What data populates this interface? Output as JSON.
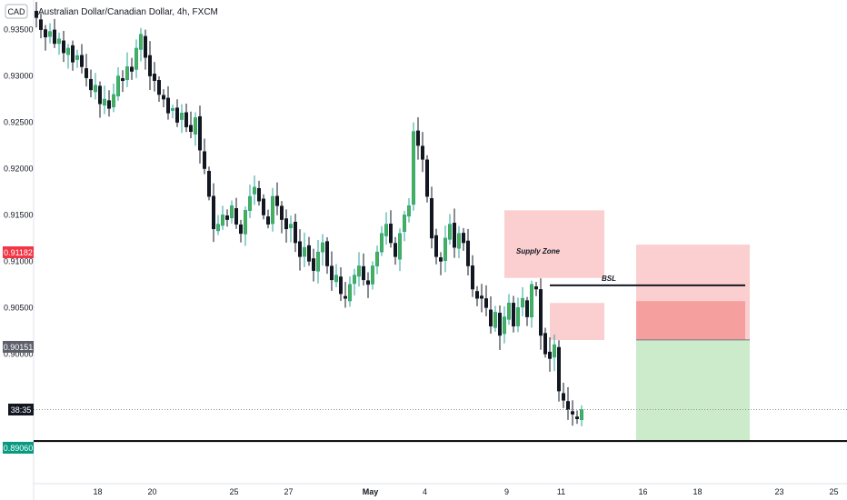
{
  "header": {
    "currency_badge": "CAD",
    "title": "Australian Dollar/Canadian Dollar, 4h, FXCM"
  },
  "colors": {
    "bull": "#26a69a",
    "bull_fill": "#4caf50",
    "bear": "#131722",
    "supply": "#f7a8a8",
    "stop": "#f48a8a",
    "target": "#b9e4b9",
    "red_tag": "#f23645",
    "gray_tag": "#5d606b",
    "green_tag": "#089981",
    "dark_tag": "#131722"
  },
  "price_tags": {
    "red": "0.91182",
    "gray": "0.90151",
    "countdown": "38:35",
    "green": "0.89060"
  },
  "chart_data": {
    "type": "candlestick",
    "title": "Australian Dollar/Canadian Dollar, 4h, FXCM",
    "ylim": [
      0.886,
      0.9382
    ],
    "y_ticks": [
      "0.93500",
      "0.93000",
      "0.92500",
      "0.92000",
      "0.91500",
      "0.91000",
      "0.90500",
      "0.90000"
    ],
    "y_tick_values": [
      0.935,
      0.93,
      0.925,
      0.92,
      0.915,
      0.91,
      0.905,
      0.9
    ],
    "x_ticks": [
      "18",
      "20",
      "25",
      "27",
      "May",
      "4",
      "9",
      "11",
      "16",
      "18",
      "23",
      "25"
    ],
    "x_tick_bars": [
      13.5,
      25.5,
      43.5,
      55.5,
      73.5,
      85.5,
      103.5,
      115.5,
      133.5,
      145.5,
      163.5,
      175.5
    ],
    "close_series": [
      0.9363,
      0.935,
      0.9342,
      0.9348,
      0.9335,
      0.934,
      0.9325,
      0.933,
      0.9315,
      0.9322,
      0.931,
      0.9298,
      0.9285,
      0.929,
      0.927,
      0.9275,
      0.9265,
      0.928,
      0.93,
      0.9295,
      0.931,
      0.9305,
      0.933,
      0.9345,
      0.932,
      0.93,
      0.9295,
      0.928,
      0.9275,
      0.926,
      0.9265,
      0.925,
      0.926,
      0.9245,
      0.924,
      0.9255,
      0.922,
      0.92,
      0.917,
      0.9135,
      0.914,
      0.915,
      0.9145,
      0.916,
      0.914,
      0.913,
      0.9155,
      0.917,
      0.918,
      0.9165,
      0.915,
      0.914,
      0.917,
      0.916,
      0.9145,
      0.9135,
      0.914,
      0.912,
      0.9105,
      0.9115,
      0.91,
      0.909,
      0.911,
      0.912,
      0.9095,
      0.908,
      0.9085,
      0.9065,
      0.906,
      0.9075,
      0.9085,
      0.9095,
      0.908,
      0.9075,
      0.9095,
      0.911,
      0.913,
      0.914,
      0.912,
      0.9105,
      0.913,
      0.915,
      0.916,
      0.924,
      0.9225,
      0.921,
      0.917,
      0.9125,
      0.9105,
      0.91,
      0.9125,
      0.914,
      0.9115,
      0.913,
      0.912,
      0.9095,
      0.907,
      0.906,
      0.906,
      0.905,
      0.903,
      0.9045,
      0.902,
      0.904,
      0.9055,
      0.903,
      0.905,
      0.906,
      0.904,
      0.9075,
      0.907,
      0.902,
      0.9,
      0.8995,
      0.901,
      0.896,
      0.895,
      0.894,
      0.8935,
      0.893,
      0.894
    ],
    "annotations": {
      "supply_zone_label": "Supply Zone",
      "bsl_label": "BSL",
      "supply_zone_1": {
        "from_bar": 103,
        "to_bar": 125,
        "top": 0.9155,
        "bottom": 0.9082
      },
      "supply_zone_2": {
        "from_bar": 113,
        "to_bar": 125,
        "top": 0.9055,
        "bottom": 0.9015
      },
      "bsl_line": {
        "from_bar": 113,
        "to_bar": 156,
        "price": 0.9074
      },
      "position_stop": {
        "from_bar": 132,
        "to_bar": 157,
        "top": 0.9118,
        "bottom": 0.90151
      },
      "position_stop_inner": {
        "from_bar": 132,
        "to_bar": 156,
        "top": 0.9057,
        "bottom": 0.90151
      },
      "position_target": {
        "from_bar": 132,
        "to_bar": 157,
        "top": 0.90151,
        "bottom": 0.8906
      },
      "target_line": 0.8906
    }
  }
}
